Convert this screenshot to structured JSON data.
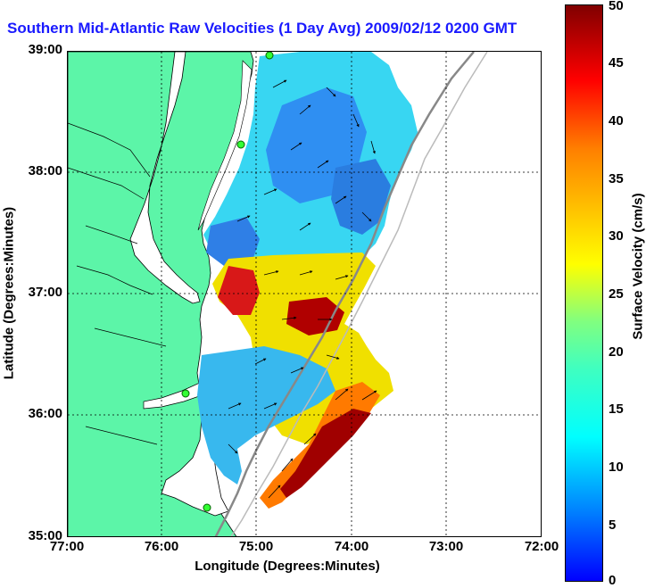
{
  "title": "Southern Mid-Atlantic Raw Velocities (1 Day Avg) 2009/02/12 0200 GMT",
  "x_axis": {
    "label": "Longitude (Degrees:Minutes)",
    "ticks": [
      "77:00",
      "76:00",
      "75:00",
      "74:00",
      "73:00",
      "72:00"
    ]
  },
  "y_axis": {
    "label": "Latitude (Degrees:Minutes)",
    "ticks": [
      "39:00",
      "38:00",
      "37:00",
      "36:00",
      "35:00"
    ]
  },
  "colorbar": {
    "label": "Surface Velocity (cm/s)",
    "ticks": [
      "50",
      "45",
      "40",
      "35",
      "30",
      "25",
      "20",
      "15",
      "10",
      "5",
      "0"
    ],
    "range": [
      0,
      50
    ],
    "colors": [
      "#0000ff",
      "#0080ff",
      "#00ffff",
      "#40ffbf",
      "#80ff80",
      "#ffff00",
      "#ffbf00",
      "#ff8000",
      "#ff0000",
      "#800000"
    ]
  },
  "colors": {
    "land": "#5cf5a8",
    "title": "#1a1aff",
    "grid": "#000000"
  }
}
